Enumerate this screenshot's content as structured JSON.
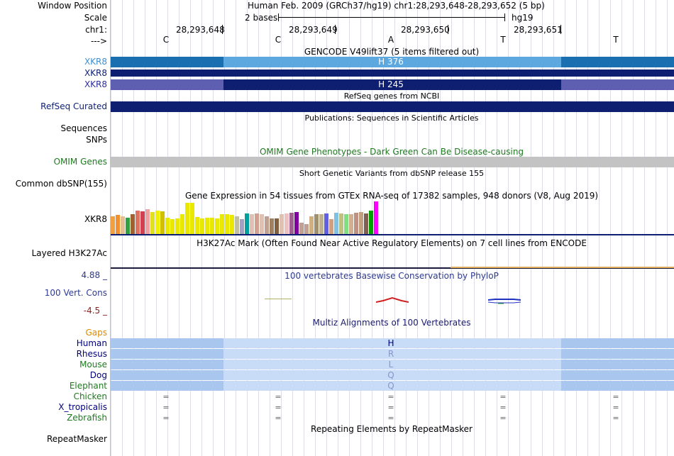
{
  "colors": {
    "xkr8_light": "#3d8fd1",
    "xkr8_lighter": "#5ea8e0",
    "xkr8_dark": "#0e1f72",
    "xkr8_purple": "#5e5fb1",
    "refseq": "#0e1f72",
    "omim_gray": "#c8c8c8",
    "omim_text": "#1e7a1e",
    "cons_axis": "#2e3a8e",
    "cons_neg": "#8e2020",
    "gaps": "#e08a00",
    "mammal_band_dark": "#a8c6ee",
    "mammal_band_light": "#c8dcf8"
  },
  "header": {
    "window_position_label": "Window Position",
    "window_position_value": "Human Feb. 2009 (GRCh37/hg19)   chr1:28,293,648-28,293,652 (5 bp)",
    "scale_label": "Scale",
    "scale_value": "2 bases",
    "scale_assembly": "hg19",
    "chrom_label": "chr1:",
    "positions": [
      "28,293,648",
      "28,293,649",
      "28,293,650",
      "28,293,651"
    ],
    "strand_label": "--->",
    "bases": [
      "C",
      "C",
      "A",
      "T",
      "T"
    ]
  },
  "gencode": {
    "title": "GENCODE V49lift37 (5 items filtered out)",
    "rows": [
      {
        "name": "XKR8",
        "label": "H 376"
      },
      {
        "name": "XKR8",
        "label": ""
      },
      {
        "name": "XKR8",
        "label": "H 245"
      }
    ]
  },
  "refseq": {
    "title": "RefSeq genes from NCBI",
    "label": "RefSeq Curated"
  },
  "publications": {
    "title": "Publications: Sequences in Scientific Articles",
    "labels": [
      "Sequences",
      "SNPs"
    ]
  },
  "omim": {
    "title": "OMIM Gene Phenotypes - Dark Green Can Be Disease-causing",
    "label": "OMIM Genes"
  },
  "dbsnp": {
    "title": "Short Genetic Variants from dbSNP release 155",
    "label": "Common dbSNP(155)"
  },
  "gtex": {
    "title": "Gene Expression in 54 tissues from GTEx RNA-seq of 17382 samples, 948 donors (V8, Aug 2019)",
    "label": "XKR8",
    "bar_values": [
      0.55,
      0.58,
      0.55,
      0.5,
      0.6,
      0.72,
      0.7,
      0.75,
      0.68,
      0.72,
      0.7,
      0.5,
      0.45,
      0.48,
      0.6,
      0.95,
      0.95,
      0.52,
      0.48,
      0.5,
      0.5,
      0.48,
      0.6,
      0.6,
      0.58,
      0.55,
      0.45,
      0.62,
      0.6,
      0.62,
      0.6,
      0.55,
      0.48,
      0.48,
      0.6,
      0.62,
      0.65,
      0.68,
      0.35,
      0.3,
      0.55,
      0.6,
      0.6,
      0.62,
      0.45,
      0.65,
      0.62,
      0.6,
      0.6,
      0.65,
      0.68,
      0.62,
      0.72,
      1.0
    ],
    "bar_colors": [
      "#f0a040",
      "#f09030",
      "#e0c090",
      "#30a040",
      "#a06030",
      "#e07060",
      "#d04050",
      "#f0a0a0",
      "#e0e020",
      "#f0f000",
      "#d0c000",
      "#e8e800",
      "#e8e800",
      "#e8e800",
      "#e8e800",
      "#e8e800",
      "#e8e800",
      "#e8e800",
      "#e8e800",
      "#e8e800",
      "#e8e800",
      "#e8e800",
      "#e8e800",
      "#e8e800",
      "#e8e800",
      "#c0c0a0",
      "#a0a0c0",
      "#00a0a0",
      "#e0c0b0",
      "#d0a090",
      "#e0c0b0",
      "#c0a090",
      "#a08060",
      "#806040",
      "#e0c0b0",
      "#f0c0c0",
      "#a06090",
      "#8000a0",
      "#c0a090",
      "#c0a090",
      "#d0b080",
      "#a09070",
      "#c0b090",
      "#6060e0",
      "#d0a080",
      "#80c0e0",
      "#c0c080",
      "#80e080",
      "#d0b090",
      "#c09080",
      "#c0a080",
      "#806050",
      "#00a000",
      "#ff00ff"
    ]
  },
  "h3k27ac": {
    "title": "H3K27Ac Mark (Often Found Near Active Regulatory Elements) on 7 cell lines from ENCODE",
    "label": "Layered H3K27Ac"
  },
  "conservation": {
    "title": "100 vertebrates Basewise Conservation by PhyloP",
    "label": "100 Vert. Cons",
    "max": "4.88 _",
    "min": "-4.5 _"
  },
  "multiz": {
    "title": "Multiz Alignments of 100 Vertebrates",
    "gaps_label": "Gaps",
    "species": [
      {
        "name": "Human",
        "aa": "H",
        "color": "#000080"
      },
      {
        "name": "Rhesus",
        "aa": "R",
        "color": "#000080"
      },
      {
        "name": "Mouse",
        "aa": "L",
        "color": "#1e7a1e"
      },
      {
        "name": "Dog",
        "aa": "Q",
        "color": "#000080"
      },
      {
        "name": "Elephant",
        "aa": "Q",
        "color": "#1e7a1e"
      },
      {
        "name": "Chicken",
        "aa": "=",
        "color": "#1e7a1e"
      },
      {
        "name": "X_tropicalis",
        "aa": "=",
        "color": "#000080"
      },
      {
        "name": "Zebrafish",
        "aa": "=",
        "color": "#1e7a1e"
      }
    ]
  },
  "repeatmasker": {
    "title": "Repeating Elements by RepeatMasker",
    "label": "RepeatMasker"
  }
}
